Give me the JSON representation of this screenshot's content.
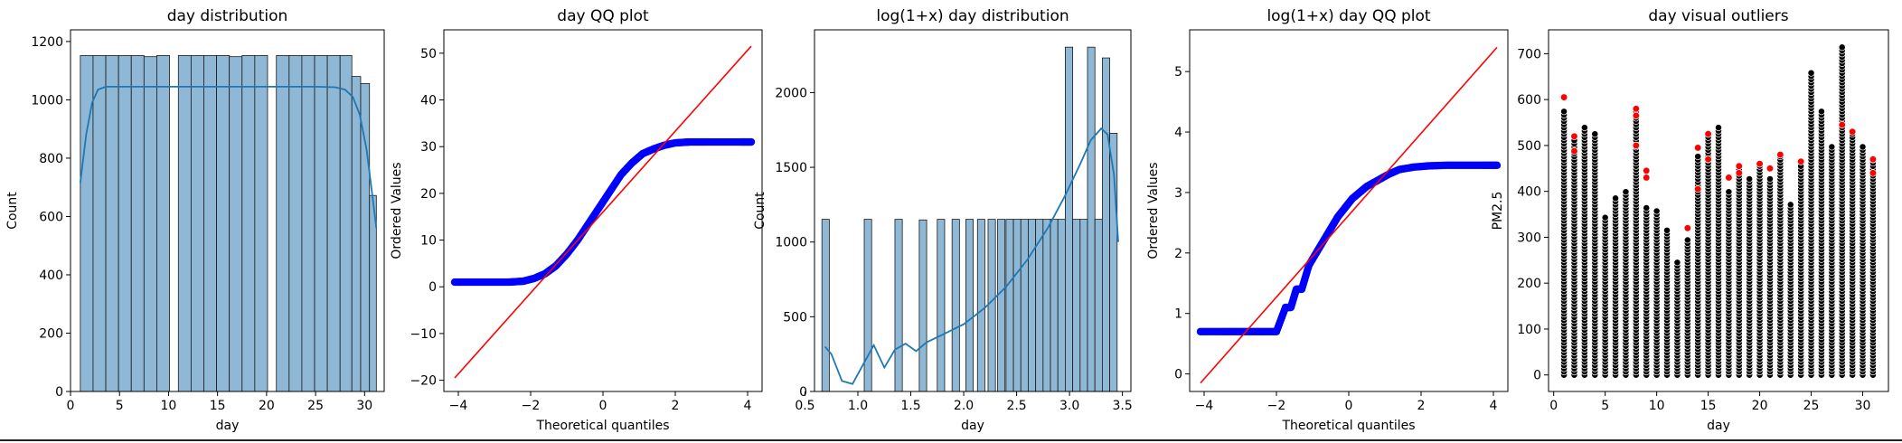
{
  "chart_data": [
    {
      "type": "bar",
      "title": "day distribution",
      "xlabel": "day",
      "ylabel": "Count",
      "xlim": [
        0,
        32
      ],
      "ylim": [
        0,
        1240
      ],
      "xticks": [
        "0",
        "5",
        "10",
        "15",
        "20",
        "25",
        "30"
      ],
      "yticks": [
        "0",
        "200",
        "400",
        "600",
        "800",
        "1000",
        "1200"
      ],
      "bar_color": "#8fb8d6",
      "kde_color": "#1f77b4",
      "bins": [
        {
          "x0": 1.0,
          "x1": 2.3,
          "count": 1152
        },
        {
          "x0": 2.3,
          "x1": 3.6,
          "count": 1152
        },
        {
          "x0": 3.6,
          "x1": 4.9,
          "count": 1152
        },
        {
          "x0": 4.9,
          "x1": 6.2,
          "count": 1152
        },
        {
          "x0": 6.2,
          "x1": 7.5,
          "count": 1152
        },
        {
          "x0": 7.5,
          "x1": 8.8,
          "count": 1148
        },
        {
          "x0": 8.8,
          "x1": 10.1,
          "count": 1152
        },
        {
          "x0": 11.0,
          "x1": 12.3,
          "count": 1152
        },
        {
          "x0": 12.3,
          "x1": 13.6,
          "count": 1152
        },
        {
          "x0": 13.6,
          "x1": 14.9,
          "count": 1152
        },
        {
          "x0": 14.9,
          "x1": 16.2,
          "count": 1152
        },
        {
          "x0": 16.2,
          "x1": 17.5,
          "count": 1148
        },
        {
          "x0": 17.5,
          "x1": 18.8,
          "count": 1152
        },
        {
          "x0": 18.8,
          "x1": 20.1,
          "count": 1152
        },
        {
          "x0": 21.0,
          "x1": 22.3,
          "count": 1152
        },
        {
          "x0": 22.3,
          "x1": 23.6,
          "count": 1152
        },
        {
          "x0": 23.6,
          "x1": 24.9,
          "count": 1152
        },
        {
          "x0": 24.9,
          "x1": 26.2,
          "count": 1152
        },
        {
          "x0": 26.2,
          "x1": 27.5,
          "count": 1152
        },
        {
          "x0": 27.5,
          "x1": 28.7,
          "count": 1152
        },
        {
          "x0": 28.7,
          "x1": 29.6,
          "count": 1080
        },
        {
          "x0": 29.6,
          "x1": 30.5,
          "count": 1056
        },
        {
          "x0": 30.5,
          "x1": 31.2,
          "count": 672
        }
      ],
      "kde": {
        "x": [
          1,
          1.6,
          2.2,
          2.8,
          3.6,
          5,
          10,
          15,
          20,
          25,
          27,
          28,
          28.8,
          29.5,
          30.2,
          30.8,
          31.2
        ],
        "y": [
          715,
          880,
          990,
          1035,
          1045,
          1045,
          1045,
          1045,
          1045,
          1045,
          1043,
          1035,
          1010,
          950,
          830,
          670,
          560
        ]
      }
    },
    {
      "type": "scatter",
      "title": "day QQ plot",
      "xlabel": "Theoretical quantiles",
      "ylabel": "Ordered Values",
      "xlim": [
        -4.4,
        4.4
      ],
      "ylim": [
        -22.4,
        55
      ],
      "xticks": [
        "−4",
        "−2",
        "0",
        "2",
        "4"
      ],
      "yticks": [
        "−20",
        "−10",
        "0",
        "10",
        "20",
        "30",
        "40",
        "50"
      ],
      "point_color": "#0000ff",
      "line_color": "#ff0000",
      "fit_line": {
        "x": [
          -4.1,
          4.1
        ],
        "y": [
          -19.5,
          51.5
        ]
      },
      "points": {
        "x": [
          -4.1,
          -3.6,
          -3.1,
          -2.6,
          -2.2,
          -1.9,
          -1.6,
          -1.3,
          -1.0,
          -0.7,
          -0.4,
          -0.1,
          0.2,
          0.5,
          0.8,
          1.1,
          1.4,
          1.7,
          2.0,
          2.4,
          2.8,
          3.3,
          3.8,
          4.1
        ],
        "y": [
          1,
          1,
          1,
          1,
          1.2,
          1.8,
          2.8,
          4.5,
          7,
          10,
          13.5,
          17,
          20.5,
          24,
          26.5,
          28.5,
          29.5,
          30.3,
          30.8,
          31,
          31,
          31,
          31,
          31
        ]
      }
    },
    {
      "type": "bar",
      "title": "log(1+x) day distribution",
      "xlabel": "day",
      "ylabel": "Count",
      "xlim": [
        0.59,
        3.58
      ],
      "ylim": [
        0,
        2420
      ],
      "xticks": [
        "0.5",
        "1.0",
        "1.5",
        "2.0",
        "2.5",
        "3.0",
        "3.5"
      ],
      "yticks": [
        "0",
        "500",
        "1000",
        "1500",
        "2000"
      ],
      "bar_color": "#8fb8d6",
      "kde_color": "#1f77b4",
      "bins": [
        {
          "x0": 0.66,
          "x1": 0.73,
          "count": 1152
        },
        {
          "x0": 1.06,
          "x1": 1.13,
          "count": 1152
        },
        {
          "x0": 1.35,
          "x1": 1.42,
          "count": 1152
        },
        {
          "x0": 1.58,
          "x1": 1.65,
          "count": 1148
        },
        {
          "x0": 1.75,
          "x1": 1.82,
          "count": 1152
        },
        {
          "x0": 1.89,
          "x1": 1.96,
          "count": 1152
        },
        {
          "x0": 2.02,
          "x1": 2.09,
          "count": 1152
        },
        {
          "x0": 2.13,
          "x1": 2.2,
          "count": 1152
        },
        {
          "x0": 2.23,
          "x1": 2.3,
          "count": 1152
        },
        {
          "x0": 2.32,
          "x1": 2.39,
          "count": 1152
        },
        {
          "x0": 2.4,
          "x1": 2.47,
          "count": 1152
        },
        {
          "x0": 2.47,
          "x1": 2.54,
          "count": 1152
        },
        {
          "x0": 2.54,
          "x1": 2.61,
          "count": 1152
        },
        {
          "x0": 2.61,
          "x1": 2.68,
          "count": 1152
        },
        {
          "x0": 2.68,
          "x1": 2.75,
          "count": 1152
        },
        {
          "x0": 2.75,
          "x1": 2.82,
          "count": 1152
        },
        {
          "x0": 2.82,
          "x1": 2.89,
          "count": 1152
        },
        {
          "x0": 2.89,
          "x1": 2.96,
          "count": 1152
        },
        {
          "x0": 2.96,
          "x1": 3.03,
          "count": 2304
        },
        {
          "x0": 3.03,
          "x1": 3.1,
          "count": 1152
        },
        {
          "x0": 3.1,
          "x1": 3.17,
          "count": 1152
        },
        {
          "x0": 3.17,
          "x1": 3.24,
          "count": 2304
        },
        {
          "x0": 3.24,
          "x1": 3.31,
          "count": 1152
        },
        {
          "x0": 3.31,
          "x1": 3.38,
          "count": 2232
        },
        {
          "x0": 3.38,
          "x1": 3.45,
          "count": 1728
        }
      ],
      "kde": {
        "x": [
          0.69,
          0.75,
          0.85,
          0.95,
          1.05,
          1.15,
          1.25,
          1.35,
          1.45,
          1.55,
          1.65,
          1.8,
          2.0,
          2.2,
          2.4,
          2.6,
          2.8,
          2.95,
          3.1,
          3.2,
          3.3,
          3.36,
          3.42,
          3.46
        ],
        "y": [
          300,
          250,
          70,
          50,
          180,
          310,
          160,
          280,
          320,
          270,
          330,
          380,
          450,
          560,
          700,
          880,
          1100,
          1300,
          1520,
          1680,
          1760,
          1720,
          1450,
          1000
        ]
      }
    },
    {
      "type": "scatter",
      "title": "log(1+x) day QQ plot",
      "xlabel": "Theoretical quantiles",
      "ylabel": "Ordered Values",
      "xlim": [
        -4.4,
        4.4
      ],
      "ylim": [
        -0.29,
        5.69
      ],
      "xticks": [
        "−4",
        "−2",
        "0",
        "2",
        "4"
      ],
      "yticks": [
        "0",
        "1",
        "2",
        "3",
        "4",
        "5"
      ],
      "point_color": "#0000ff",
      "line_color": "#ff0000",
      "fit_line": {
        "x": [
          -4.1,
          4.1
        ],
        "y": [
          -0.15,
          5.4
        ]
      },
      "points": {
        "x": [
          -4.1,
          -3.5,
          -3.0,
          -2.5,
          -2.0,
          -1.75,
          -1.6,
          -1.45,
          -1.3,
          -1.1,
          -0.9,
          -0.7,
          -0.5,
          -0.3,
          -0.1,
          0.1,
          0.3,
          0.5,
          0.8,
          1.1,
          1.4,
          1.8,
          2.2,
          2.7,
          3.2,
          3.7,
          4.1
        ],
        "y": [
          0.7,
          0.7,
          0.7,
          0.7,
          0.7,
          1.1,
          1.1,
          1.4,
          1.4,
          1.8,
          2.0,
          2.2,
          2.4,
          2.6,
          2.75,
          2.9,
          3.0,
          3.1,
          3.2,
          3.3,
          3.38,
          3.42,
          3.44,
          3.45,
          3.45,
          3.45,
          3.45
        ]
      }
    },
    {
      "type": "scatter",
      "title": "day visual outliers",
      "xlabel": "day",
      "ylabel": "PM2.5",
      "xlim": [
        -0.5,
        32.5
      ],
      "ylim": [
        -36,
        752
      ],
      "xticks": [
        "0",
        "5",
        "10",
        "15",
        "20",
        "25",
        "30"
      ],
      "yticks": [
        "0",
        "100",
        "200",
        "300",
        "400",
        "500",
        "600",
        "700"
      ],
      "point_color": "#000000",
      "outlier_color": "#ff0000",
      "day_max": [
        575,
        515,
        540,
        530,
        345,
        390,
        400,
        575,
        370,
        360,
        320,
        245,
        300,
        480,
        520,
        540,
        400,
        455,
        430,
        460,
        430,
        480,
        375,
        460,
        660,
        580,
        500,
        715,
        525,
        500,
        470
      ],
      "outliers": {
        "x": [
          1,
          2,
          2,
          8,
          8,
          8,
          9,
          9,
          13,
          14,
          14,
          15,
          15,
          17,
          18,
          18,
          20,
          21,
          22,
          24,
          28,
          29,
          31,
          31
        ],
        "y": [
          605,
          520,
          488,
          580,
          565,
          500,
          445,
          430,
          320,
          495,
          405,
          525,
          470,
          430,
          455,
          440,
          460,
          450,
          480,
          465,
          545,
          530,
          470,
          440
        ]
      }
    }
  ]
}
